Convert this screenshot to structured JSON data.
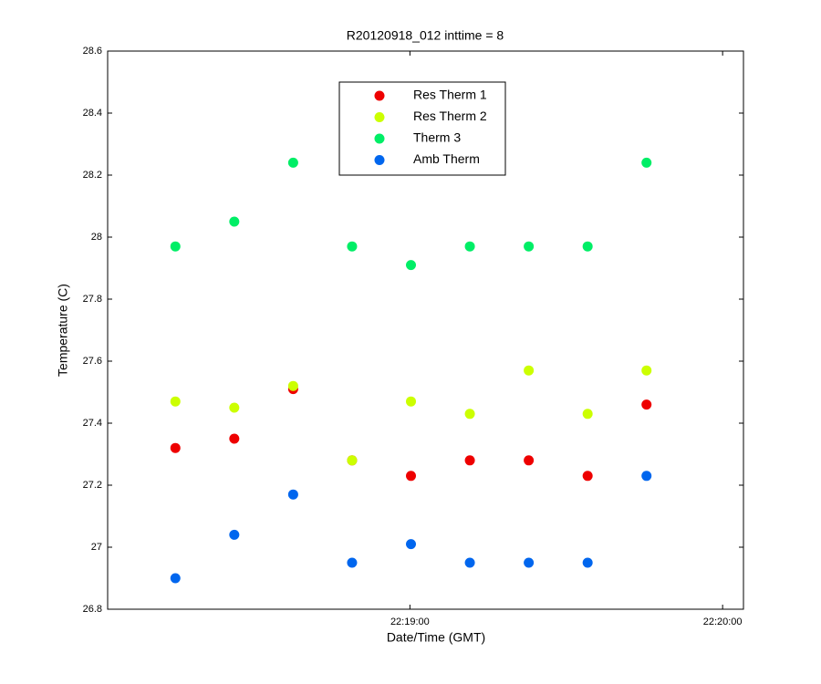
{
  "chart_data": {
    "type": "scatter",
    "title": "R20120918_012 inttime = 8",
    "xlabel": "Date/Time (GMT)",
    "ylabel": "Temperature (C)",
    "x": [
      80295,
      80306.3,
      80317.6,
      80328.9,
      80340.2,
      80351.5,
      80362.8,
      80374.1,
      80385.4
    ],
    "xlim": [
      80282,
      80404
    ],
    "xticks": [
      {
        "value": 80340,
        "label": "22:19:00"
      },
      {
        "value": 80400,
        "label": "22:20:00"
      }
    ],
    "ylim": [
      26.8,
      28.6
    ],
    "yticks": [
      26.8,
      27,
      27.2,
      27.4,
      27.6,
      27.8,
      28,
      28.2,
      28.4,
      28.6
    ],
    "grid": false,
    "legend": "top",
    "series": [
      {
        "name": "Res Therm 1",
        "color": "#ee0000",
        "values": [
          27.32,
          27.35,
          27.51,
          27.28,
          27.23,
          27.28,
          27.28,
          27.23,
          27.46
        ]
      },
      {
        "name": "Res Therm 2",
        "color": "#ccff00",
        "values": [
          27.47,
          27.45,
          27.52,
          27.28,
          27.47,
          27.43,
          27.57,
          27.43,
          27.57
        ]
      },
      {
        "name": "Therm 3",
        "color": "#00ee66",
        "values": [
          27.97,
          28.05,
          28.24,
          27.97,
          27.91,
          27.97,
          27.97,
          27.97,
          28.24
        ]
      },
      {
        "name": "Amb Therm",
        "color": "#0066ee",
        "values": [
          26.9,
          27.04,
          27.17,
          26.95,
          27.01,
          26.95,
          26.95,
          26.95,
          27.23
        ]
      }
    ]
  }
}
